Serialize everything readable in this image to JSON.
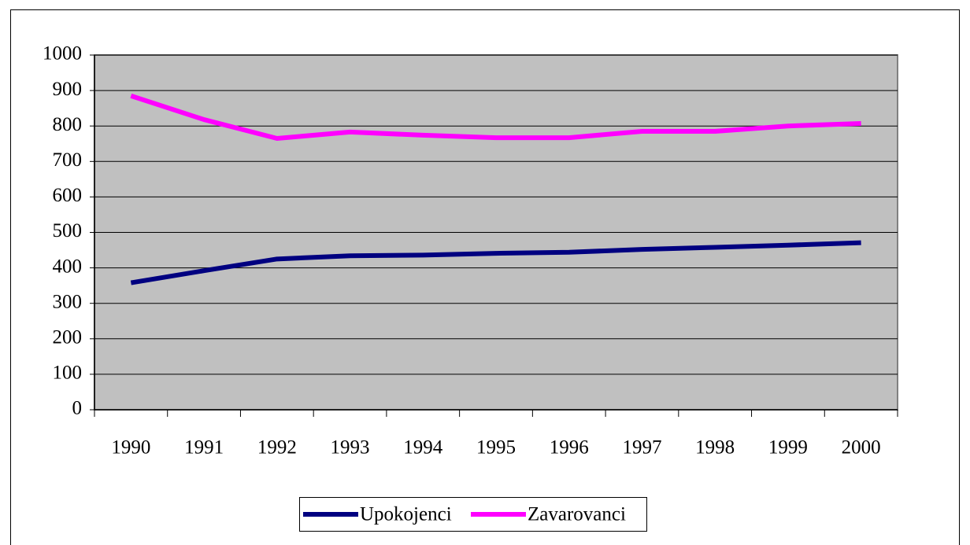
{
  "chart_data": {
    "type": "line",
    "categories": [
      "1990",
      "1991",
      "1992",
      "1993",
      "1994",
      "1995",
      "1996",
      "1997",
      "1998",
      "1999",
      "2000"
    ],
    "series": [
      {
        "name": "Upokojenci",
        "color": "#000080",
        "values": [
          358,
          392,
          425,
          434,
          436,
          441,
          444,
          452,
          458,
          464,
          471
        ]
      },
      {
        "name": "Zavarovanci",
        "color": "#ff00ff",
        "values": [
          885,
          818,
          765,
          783,
          774,
          767,
          767,
          785,
          785,
          800,
          807
        ]
      }
    ],
    "ylim": [
      0,
      1000
    ],
    "yticks": [
      0,
      100,
      200,
      300,
      400,
      500,
      600,
      700,
      800,
      900,
      1000
    ],
    "grid": true,
    "legend": "bottom"
  }
}
